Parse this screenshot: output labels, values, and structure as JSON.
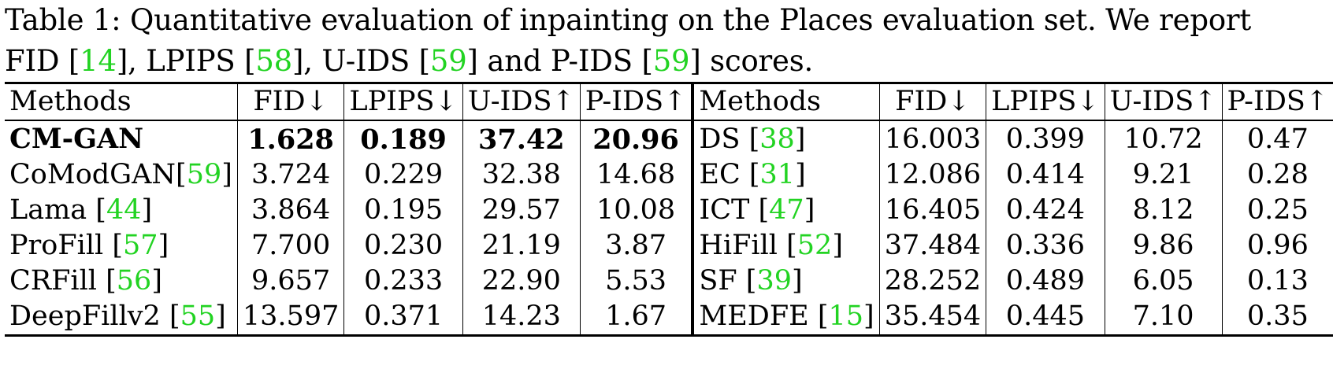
{
  "caption": {
    "line1": "Table 1: Quantitative evaluation of inpainting on the Places evaluation set. We report",
    "line2_parts": [
      {
        "text": "FID ",
        "ref": false
      },
      {
        "text": "[",
        "ref": false
      },
      {
        "text": "14",
        "ref": true
      },
      {
        "text": "], LPIPS [",
        "ref": false
      },
      {
        "text": "58",
        "ref": true
      },
      {
        "text": "], U-IDS [",
        "ref": false
      },
      {
        "text": "59",
        "ref": true
      },
      {
        "text": "] and P-IDS [",
        "ref": false
      },
      {
        "text": "59",
        "ref": true
      },
      {
        "text": "] scores.",
        "ref": false
      }
    ]
  },
  "headers": {
    "methods": "Methods",
    "fid": "FID↓",
    "lpips": "LPIPS↓",
    "uids": "U-IDS↑",
    "pids": "P-IDS↑"
  },
  "rows": [
    {
      "left": {
        "name": "CM-GAN",
        "ref": "",
        "fid": "1.628",
        "lpips": "0.189",
        "uids": "37.42",
        "pids": "20.96",
        "bold": true
      },
      "right": {
        "name": "DS ",
        "ref": "38",
        "fid": "16.003",
        "lpips": "0.399",
        "uids": "10.72",
        "pids": "0.47"
      }
    },
    {
      "left": {
        "name": "CoModGAN",
        "ref": "59",
        "fid": "3.724",
        "lpips": "0.229",
        "uids": "32.38",
        "pids": "14.68"
      },
      "right": {
        "name": "EC ",
        "ref": "31",
        "fid": "12.086",
        "lpips": "0.414",
        "uids": "9.21",
        "pids": "0.28"
      }
    },
    {
      "left": {
        "name": "Lama ",
        "ref": "44",
        "fid": "3.864",
        "lpips": "0.195",
        "uids": "29.57",
        "pids": "10.08"
      },
      "right": {
        "name": "ICT ",
        "ref": "47",
        "fid": "16.405",
        "lpips": "0.424",
        "uids": "8.12",
        "pids": "0.25"
      }
    },
    {
      "left": {
        "name": "ProFill ",
        "ref": "57",
        "fid": "7.700",
        "lpips": "0.230",
        "uids": "21.19",
        "pids": "3.87"
      },
      "right": {
        "name": "HiFill ",
        "ref": "52",
        "fid": "37.484",
        "lpips": "0.336",
        "uids": "9.86",
        "pids": "0.96"
      }
    },
    {
      "left": {
        "name": "CRFill ",
        "ref": "56",
        "fid": "9.657",
        "lpips": "0.233",
        "uids": "22.90",
        "pids": "5.53"
      },
      "right": {
        "name": "SF ",
        "ref": "39",
        "fid": "28.252",
        "lpips": "0.489",
        "uids": "6.05",
        "pids": "0.13"
      }
    },
    {
      "left": {
        "name": "DeepFillv2 ",
        "ref": "55",
        "fid": "13.597",
        "lpips": "0.371",
        "uids": "14.23",
        "pids": "1.67"
      },
      "right": {
        "name": "MEDFE ",
        "ref": "15",
        "fid": "35.454",
        "lpips": "0.445",
        "uids": "7.10",
        "pids": "0.35"
      }
    }
  ]
}
